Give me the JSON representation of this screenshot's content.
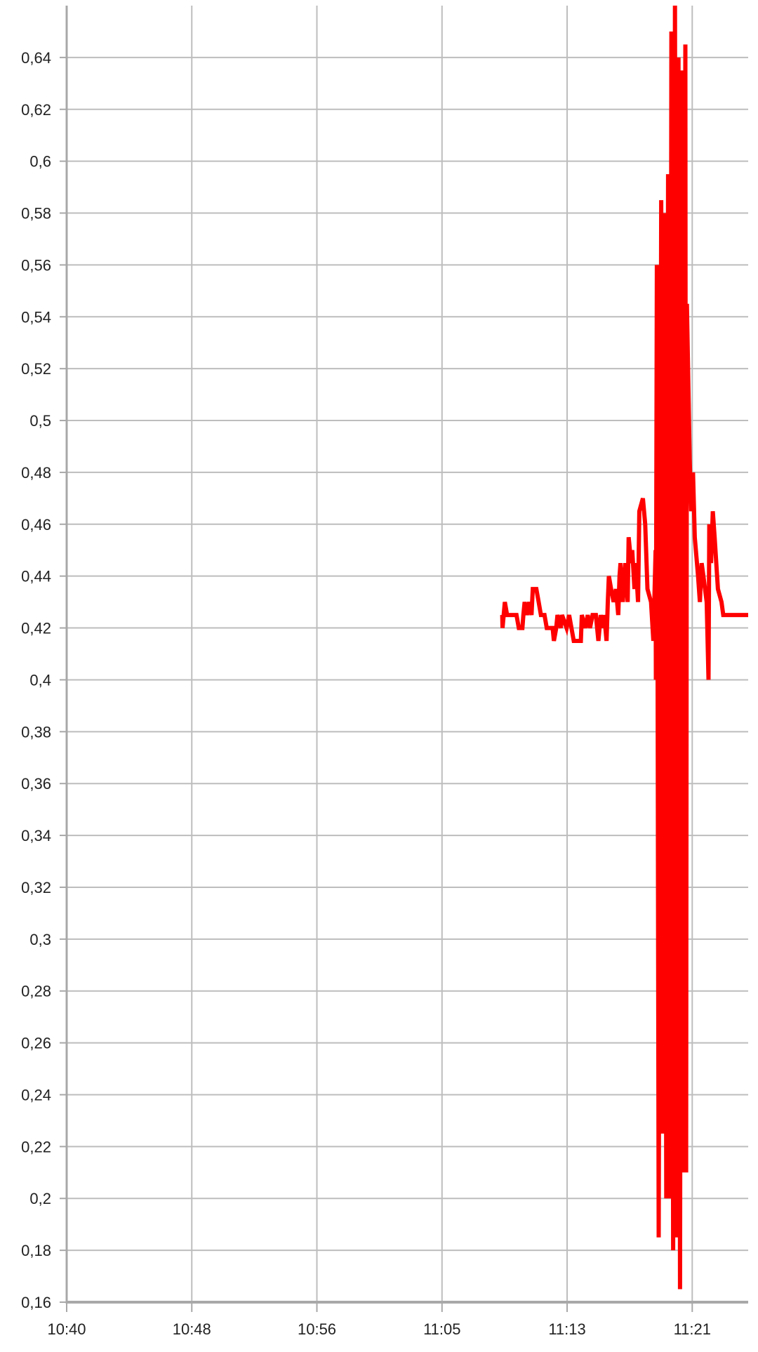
{
  "chart_data": {
    "type": "line",
    "title": "",
    "xlabel": "",
    "ylabel": "",
    "xlim": [
      "10:40:00",
      "11:24:40"
    ],
    "ylim": [
      0.16,
      0.66
    ],
    "grid": true,
    "decimal_separator": ",",
    "x_ticks": [
      {
        "t": "10:40:00",
        "label": "10:40"
      },
      {
        "t": "10:48:12",
        "label": "10:48"
      },
      {
        "t": "10:56:24",
        "label": "10:56"
      },
      {
        "t": "11:04:36",
        "label": "11:05"
      },
      {
        "t": "11:12:48",
        "label": "11:13"
      },
      {
        "t": "11:21:00",
        "label": "11:21"
      }
    ],
    "y_ticks": [
      {
        "v": 0.16,
        "label": "0,16"
      },
      {
        "v": 0.18,
        "label": "0,18"
      },
      {
        "v": 0.2,
        "label": "0,2"
      },
      {
        "v": 0.22,
        "label": "0,22"
      },
      {
        "v": 0.24,
        "label": "0,24"
      },
      {
        "v": 0.26,
        "label": "0,26"
      },
      {
        "v": 0.28,
        "label": "0,28"
      },
      {
        "v": 0.3,
        "label": "0,3"
      },
      {
        "v": 0.32,
        "label": "0,32"
      },
      {
        "v": 0.34,
        "label": "0,34"
      },
      {
        "v": 0.36,
        "label": "0,36"
      },
      {
        "v": 0.38,
        "label": "0,38"
      },
      {
        "v": 0.4,
        "label": "0,4"
      },
      {
        "v": 0.42,
        "label": "0,42"
      },
      {
        "v": 0.44,
        "label": "0,44"
      },
      {
        "v": 0.46,
        "label": "0,46"
      },
      {
        "v": 0.48,
        "label": "0,48"
      },
      {
        "v": 0.5,
        "label": "0,5"
      },
      {
        "v": 0.52,
        "label": "0,52"
      },
      {
        "v": 0.54,
        "label": "0,54"
      },
      {
        "v": 0.56,
        "label": "0,56"
      },
      {
        "v": 0.58,
        "label": "0,58"
      },
      {
        "v": 0.6,
        "label": "0,6"
      },
      {
        "v": 0.62,
        "label": "0,62"
      },
      {
        "v": 0.64,
        "label": "0,64"
      }
    ],
    "colors": {
      "series": "#ff0000",
      "grid": "#bdbdbd",
      "axis": "#a8a8a8"
    },
    "series": [
      {
        "points": [
          [
            "11:08:33",
            0.425
          ],
          [
            "11:08:34",
            0.42
          ],
          [
            "11:08:43",
            0.43
          ],
          [
            "11:08:52",
            0.425
          ],
          [
            "11:09:29",
            0.425
          ],
          [
            "11:09:38",
            0.42
          ],
          [
            "11:09:52",
            0.42
          ],
          [
            "11:09:56",
            0.425
          ],
          [
            "11:10:01",
            0.43
          ],
          [
            "11:10:10",
            0.425
          ],
          [
            "11:10:19",
            0.43
          ],
          [
            "11:10:28",
            0.425
          ],
          [
            "11:10:33",
            0.435
          ],
          [
            "11:10:47",
            0.435
          ],
          [
            "11:10:56",
            0.43
          ],
          [
            "11:11:05",
            0.425
          ],
          [
            "11:11:19",
            0.425
          ],
          [
            "11:11:28",
            0.42
          ],
          [
            "11:11:51",
            0.42
          ],
          [
            "11:11:56",
            0.415
          ],
          [
            "11:12:05",
            0.42
          ],
          [
            "11:12:10",
            0.425
          ],
          [
            "11:12:23",
            0.42
          ],
          [
            "11:12:28",
            0.425
          ],
          [
            "11:12:46",
            0.42
          ],
          [
            "11:12:56",
            0.425
          ],
          [
            "11:13:05",
            0.42
          ],
          [
            "11:13:14",
            0.415
          ],
          [
            "11:13:42",
            0.415
          ],
          [
            "11:13:46",
            0.425
          ],
          [
            "11:14:00",
            0.42
          ],
          [
            "11:14:09",
            0.425
          ],
          [
            "11:14:18",
            0.42
          ],
          [
            "11:14:28",
            0.425
          ],
          [
            "11:14:41",
            0.425
          ],
          [
            "11:14:51",
            0.415
          ],
          [
            "11:15:00",
            0.425
          ],
          [
            "11:15:09",
            0.42
          ],
          [
            "11:15:14",
            0.425
          ],
          [
            "11:15:23",
            0.415
          ],
          [
            "11:15:28",
            0.43
          ],
          [
            "11:15:32",
            0.44
          ],
          [
            "11:15:41",
            0.435
          ],
          [
            "11:15:51",
            0.43
          ],
          [
            "11:16:00",
            0.435
          ],
          [
            "11:16:09",
            0.425
          ],
          [
            "11:16:14",
            0.44
          ],
          [
            "11:16:18",
            0.445
          ],
          [
            "11:16:27",
            0.43
          ],
          [
            "11:16:37",
            0.445
          ],
          [
            "11:16:46",
            0.43
          ],
          [
            "11:16:50",
            0.455
          ],
          [
            "11:17:00",
            0.445
          ],
          [
            "11:17:04",
            0.45
          ],
          [
            "11:17:13",
            0.435
          ],
          [
            "11:17:18",
            0.445
          ],
          [
            "11:17:27",
            0.43
          ],
          [
            "11:17:32",
            0.465
          ],
          [
            "11:17:46",
            0.47
          ],
          [
            "11:17:55",
            0.46
          ],
          [
            "11:18:04",
            0.435
          ],
          [
            "11:18:18",
            0.43
          ],
          [
            "11:18:27",
            0.415
          ],
          [
            "11:18:36",
            0.45
          ],
          [
            "11:18:37",
            0.4
          ],
          [
            "11:18:41",
            0.56
          ],
          [
            "11:18:48",
            0.185
          ],
          [
            "11:18:58",
            0.585
          ],
          [
            "11:19:04",
            0.225
          ],
          [
            "11:19:11",
            0.58
          ],
          [
            "11:19:18",
            0.2
          ],
          [
            "11:19:25",
            0.595
          ],
          [
            "11:19:32",
            0.2
          ],
          [
            "11:19:38",
            0.65
          ],
          [
            "11:19:45",
            0.18
          ],
          [
            "11:19:52",
            0.67
          ],
          [
            "11:19:59",
            0.185
          ],
          [
            "11:20:06",
            0.64
          ],
          [
            "11:20:12",
            0.165
          ],
          [
            "11:20:19",
            0.635
          ],
          [
            "11:20:26",
            0.21
          ],
          [
            "11:20:33",
            0.645
          ],
          [
            "11:20:36",
            0.21
          ],
          [
            "11:20:39",
            0.545
          ],
          [
            "11:20:50",
            0.485
          ],
          [
            "11:20:56",
            0.465
          ],
          [
            "11:21:03",
            0.48
          ],
          [
            "11:21:10",
            0.455
          ],
          [
            "11:21:23",
            0.44
          ],
          [
            "11:21:30",
            0.43
          ],
          [
            "11:21:37",
            0.445
          ],
          [
            "11:21:44",
            0.44
          ],
          [
            "11:21:57",
            0.43
          ],
          [
            "11:22:04",
            0.4
          ],
          [
            "11:22:07",
            0.46
          ],
          [
            "11:22:14",
            0.445
          ],
          [
            "11:22:21",
            0.465
          ],
          [
            "11:22:28",
            0.455
          ],
          [
            "11:22:41",
            0.435
          ],
          [
            "11:22:55",
            0.43
          ],
          [
            "11:23:02",
            0.425
          ],
          [
            "11:24:40",
            0.425
          ]
        ]
      }
    ]
  }
}
